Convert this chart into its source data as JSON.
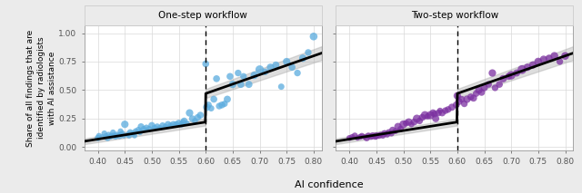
{
  "panel1_title": "One-step workflow",
  "panel2_title": "Two-step workflow",
  "xlabel": "AI confidence",
  "ylabel": "Share of all findings that are\nidentified by radiologists\nwith AI assistance",
  "xlim": [
    0.375,
    0.815
  ],
  "ylim": [
    -0.03,
    1.07
  ],
  "xticks": [
    0.4,
    0.45,
    0.5,
    0.55,
    0.6,
    0.65,
    0.7,
    0.75,
    0.8
  ],
  "yticks": [
    0.0,
    0.25,
    0.5,
    0.75,
    1.0
  ],
  "vline_x": 0.6,
  "color1": "#5aabde",
  "color2": "#7b30a0",
  "background_color": "#ebebeb",
  "panel_bg": "#ffffff",
  "grid_color": "#d9d9d9",
  "title_bg": "#ebebeb",
  "scatter1_x": [
    0.4,
    0.402,
    0.408,
    0.412,
    0.415,
    0.418,
    0.42,
    0.423,
    0.425,
    0.428,
    0.43,
    0.433,
    0.435,
    0.44,
    0.442,
    0.445,
    0.448,
    0.45,
    0.455,
    0.458,
    0.46,
    0.465,
    0.468,
    0.47,
    0.475,
    0.478,
    0.48,
    0.485,
    0.49,
    0.495,
    0.5,
    0.505,
    0.51,
    0.515,
    0.52,
    0.525,
    0.53,
    0.535,
    0.54,
    0.545,
    0.55,
    0.555,
    0.558,
    0.56,
    0.565,
    0.57,
    0.575,
    0.58,
    0.585,
    0.59,
    0.6,
    0.602,
    0.605,
    0.61,
    0.615,
    0.62,
    0.625,
    0.63,
    0.635,
    0.64,
    0.645,
    0.65,
    0.66,
    0.665,
    0.67,
    0.68,
    0.69,
    0.7,
    0.71,
    0.72,
    0.73,
    0.74,
    0.75,
    0.76,
    0.77,
    0.78,
    0.79,
    0.8
  ],
  "scatter1_y": [
    0.08,
    0.1,
    0.09,
    0.12,
    0.1,
    0.08,
    0.11,
    0.09,
    0.1,
    0.13,
    0.1,
    0.09,
    0.11,
    0.1,
    0.14,
    0.12,
    0.1,
    0.2,
    0.11,
    0.1,
    0.13,
    0.12,
    0.1,
    0.14,
    0.15,
    0.13,
    0.18,
    0.16,
    0.17,
    0.16,
    0.19,
    0.17,
    0.18,
    0.17,
    0.19,
    0.18,
    0.2,
    0.19,
    0.2,
    0.2,
    0.21,
    0.2,
    0.22,
    0.23,
    0.21,
    0.3,
    0.25,
    0.23,
    0.26,
    0.28,
    0.73,
    0.35,
    0.37,
    0.34,
    0.42,
    0.6,
    0.36,
    0.37,
    0.38,
    0.42,
    0.62,
    0.55,
    0.65,
    0.55,
    0.62,
    0.55,
    0.63,
    0.68,
    0.66,
    0.7,
    0.72,
    0.53,
    0.75,
    0.7,
    0.65,
    0.78,
    0.83,
    0.97
  ],
  "scatter1_s": [
    25,
    20,
    18,
    22,
    18,
    25,
    20,
    18,
    22,
    20,
    25,
    18,
    22,
    28,
    20,
    22,
    18,
    35,
    18,
    20,
    25,
    20,
    18,
    22,
    25,
    20,
    28,
    22,
    25,
    22,
    30,
    22,
    25,
    20,
    25,
    22,
    28,
    22,
    28,
    25,
    30,
    25,
    22,
    28,
    20,
    35,
    28,
    22,
    28,
    30,
    30,
    35,
    28,
    25,
    30,
    30,
    28,
    30,
    25,
    32,
    30,
    35,
    28,
    32,
    28,
    32,
    35,
    45,
    28,
    35,
    32,
    25,
    35,
    30,
    28,
    35,
    28,
    38
  ],
  "scatter2_x": [
    0.4,
    0.405,
    0.41,
    0.415,
    0.42,
    0.423,
    0.428,
    0.432,
    0.435,
    0.44,
    0.443,
    0.448,
    0.45,
    0.455,
    0.458,
    0.462,
    0.465,
    0.47,
    0.473,
    0.478,
    0.48,
    0.485,
    0.49,
    0.495,
    0.5,
    0.505,
    0.51,
    0.515,
    0.52,
    0.525,
    0.53,
    0.535,
    0.54,
    0.545,
    0.55,
    0.555,
    0.558,
    0.56,
    0.565,
    0.568,
    0.572,
    0.578,
    0.583,
    0.59,
    0.598,
    0.6,
    0.603,
    0.608,
    0.613,
    0.618,
    0.625,
    0.63,
    0.635,
    0.64,
    0.645,
    0.65,
    0.658,
    0.665,
    0.67,
    0.678,
    0.685,
    0.695,
    0.7,
    0.71,
    0.72,
    0.73,
    0.74,
    0.75,
    0.76,
    0.77,
    0.78,
    0.79,
    0.8
  ],
  "scatter2_y": [
    0.08,
    0.09,
    0.1,
    0.08,
    0.09,
    0.1,
    0.09,
    0.08,
    0.1,
    0.09,
    0.1,
    0.09,
    0.1,
    0.1,
    0.11,
    0.1,
    0.12,
    0.11,
    0.13,
    0.12,
    0.15,
    0.14,
    0.18,
    0.16,
    0.2,
    0.21,
    0.22,
    0.2,
    0.22,
    0.25,
    0.23,
    0.26,
    0.28,
    0.27,
    0.28,
    0.3,
    0.29,
    0.25,
    0.3,
    0.32,
    0.3,
    0.32,
    0.33,
    0.35,
    0.37,
    0.45,
    0.4,
    0.42,
    0.38,
    0.42,
    0.44,
    0.43,
    0.47,
    0.5,
    0.48,
    0.52,
    0.55,
    0.65,
    0.52,
    0.55,
    0.6,
    0.62,
    0.63,
    0.65,
    0.68,
    0.7,
    0.72,
    0.75,
    0.77,
    0.78,
    0.8,
    0.75,
    0.8
  ],
  "scatter2_s": [
    22,
    20,
    25,
    18,
    22,
    20,
    18,
    28,
    25,
    22,
    28,
    22,
    30,
    25,
    20,
    22,
    28,
    22,
    25,
    22,
    28,
    22,
    35,
    25,
    40,
    25,
    35,
    22,
    30,
    40,
    28,
    30,
    42,
    25,
    42,
    32,
    28,
    32,
    28,
    22,
    30,
    28,
    28,
    32,
    30,
    35,
    32,
    28,
    28,
    35,
    30,
    32,
    28,
    35,
    30,
    32,
    28,
    35,
    28,
    30,
    35,
    30,
    45,
    32,
    50,
    35,
    35,
    38,
    35,
    32,
    38,
    28,
    38
  ]
}
